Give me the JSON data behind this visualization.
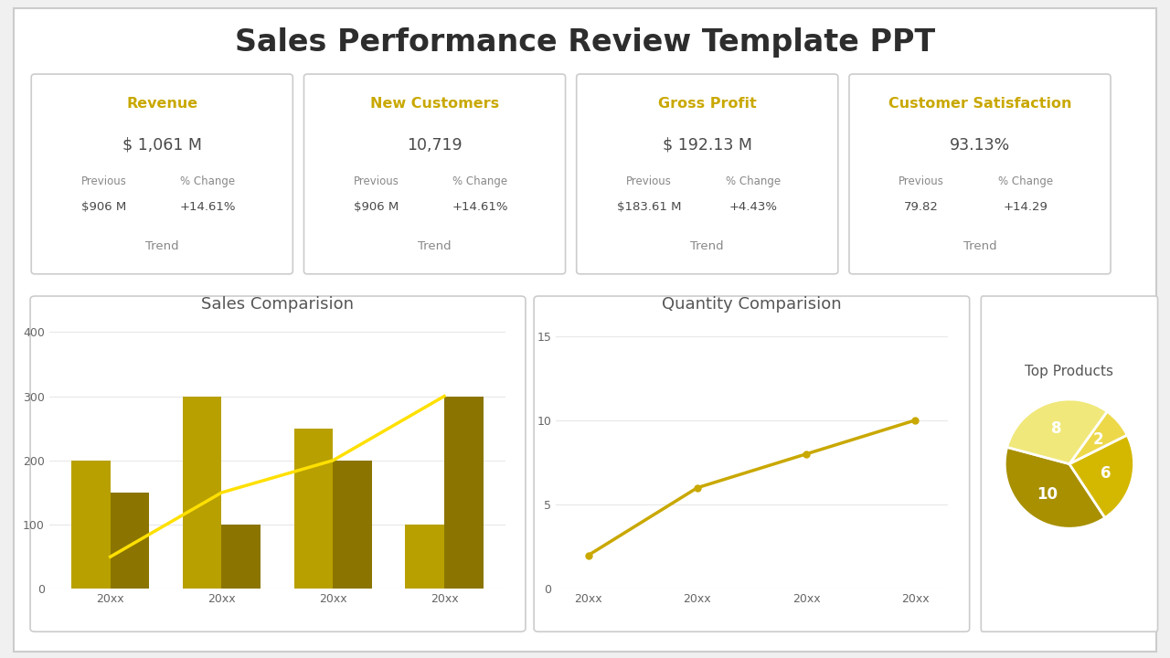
{
  "title": "Sales Performance Review Template PPT",
  "title_fontsize": 24,
  "title_color": "#2d2d2d",
  "background_color": "#f5f5f5",
  "golden_color": "#C9A800",
  "metrics": [
    {
      "label": "Revenue",
      "value": "$ 1,061 M",
      "prev_label": "Previous",
      "prev_value": "$906 M",
      "change_label": "% Change",
      "change_value": "+14.61%",
      "trend": "Trend"
    },
    {
      "label": "New Customers",
      "value": "10,719",
      "prev_label": "Previous",
      "prev_value": "$906 M",
      "change_label": "% Change",
      "change_value": "+14.61%",
      "trend": "Trend"
    },
    {
      "label": "Gross Profit",
      "value": "$ 192.13 M",
      "prev_label": "Previous",
      "prev_value": "$183.61 M",
      "change_label": "% Change",
      "change_value": "+4.43%",
      "trend": "Trend"
    },
    {
      "label": "Customer Satisfaction",
      "value": "93.13%",
      "prev_label": "Previous",
      "prev_value": "79.82",
      "change_label": "% Change",
      "change_value": "+14.29",
      "trend": "Trend"
    }
  ],
  "bar_chart": {
    "title": "Sales Comparision",
    "categories": [
      "20xx",
      "20xx",
      "20xx",
      "20xx"
    ],
    "series1": [
      200,
      300,
      250,
      100
    ],
    "series2": [
      150,
      100,
      200,
      300
    ],
    "line_values": [
      50,
      150,
      200,
      300
    ],
    "ylim": [
      0,
      420
    ],
    "yticks": [
      0,
      100,
      200,
      300,
      400
    ],
    "bar_color1": "#B8A000",
    "bar_color2": "#8B7500",
    "line_color": "#FFE000"
  },
  "line_chart": {
    "title": "Quantity Comparision",
    "categories": [
      "20xx",
      "20xx",
      "20xx",
      "20xx"
    ],
    "values": [
      2,
      6,
      8,
      10
    ],
    "ylim": [
      0,
      16
    ],
    "yticks": [
      0,
      5,
      10,
      15
    ],
    "line_color": "#C9A800"
  },
  "pie_chart": {
    "title": "Top Products",
    "values": [
      10,
      6,
      2,
      8
    ],
    "labels": [
      "10",
      "6",
      "2",
      "8"
    ],
    "colors": [
      "#A89000",
      "#D4B800",
      "#EDD84A",
      "#F0E87A"
    ],
    "startangle": 165
  }
}
